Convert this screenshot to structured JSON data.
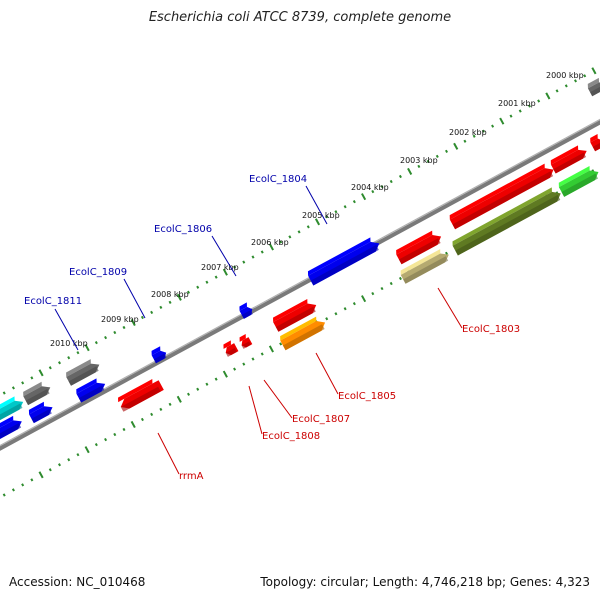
{
  "title": "Escherichia coli ATCC 8739, complete genome",
  "accession": "Accession: NC_010468",
  "topology": "Topology: circular; Length: 4,746,218 bp; Genes: 4,323",
  "colors": {
    "backbone": "#7a7a7a",
    "ticks": "#2e8b2e",
    "label_top": "#0000aa",
    "label_bottom": "#cc0000",
    "red": "#ee0000",
    "blue": "#0000ee",
    "gray": "#666666",
    "orange": "#ff8c00",
    "khaki": "#b5aa70",
    "olive": "#5f7a22",
    "green": "#33cc33",
    "cyan": "#00c8c8"
  },
  "scale_labels": [
    "2000 kbp",
    "2001 kbp",
    "2002 kbp",
    "2003 kbp",
    "2004 kbp",
    "2005 kbp",
    "2006 kbp",
    "2007 kbp",
    "2008 kbp",
    "2009 kbp",
    "2010 kbp"
  ],
  "top_labels": [
    "EcolC_1804",
    "EcolC_1806",
    "EcolC_1809",
    "EcolC_1811"
  ],
  "bottom_labels": [
    "EcolC_1803",
    "EcolC_1805",
    "EcolC_1807",
    "EcolC_1808",
    "rrmA"
  ]
}
